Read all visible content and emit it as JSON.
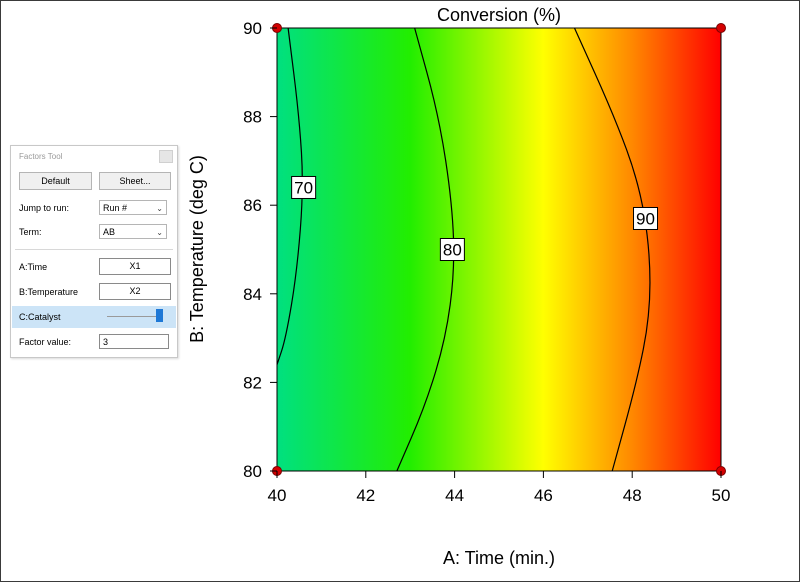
{
  "factors_tool": {
    "title": "Factors Tool",
    "default_button": "Default",
    "sheet_button": "Sheet...",
    "jump_to_run_label": "Jump to run:",
    "jump_to_run_value": "Run #",
    "term_label": "Term:",
    "term_value": "AB",
    "factor_a_label": "A:Time",
    "factor_a_axis": "X1",
    "factor_b_label": "B:Temperature",
    "factor_b_axis": "X2",
    "factor_c_label": "C:Catalyst",
    "factor_c_slider_fraction": 1.0,
    "factor_value_label": "Factor value:",
    "factor_value": "3"
  },
  "chart_data": {
    "type": "contour",
    "title": "Conversion (%)",
    "xlabel": "A: Time (min.)",
    "ylabel": "B: Temperature (deg C)",
    "xlim": [
      40,
      50
    ],
    "ylim": [
      80,
      90
    ],
    "xticks": [
      "40",
      "42",
      "44",
      "46",
      "48",
      "50"
    ],
    "yticks": [
      "80",
      "82",
      "84",
      "86",
      "88",
      "90"
    ],
    "color_scale": [
      "#00e080",
      "#22ee00",
      "#ffff00",
      "#ff8800",
      "#ff0000"
    ],
    "contours": [
      {
        "level": "70",
        "label_at": [
          40.6,
          86.4
        ],
        "points": [
          [
            40.25,
            90
          ],
          [
            40.5,
            88
          ],
          [
            40.6,
            86.4
          ],
          [
            40.45,
            84.5
          ],
          [
            40.2,
            83
          ],
          [
            40.0,
            82.4
          ]
        ]
      },
      {
        "level": "80",
        "label_at": [
          43.95,
          85.0
        ],
        "points": [
          [
            43.1,
            90
          ],
          [
            43.65,
            88
          ],
          [
            43.95,
            86
          ],
          [
            44.0,
            84.5
          ],
          [
            43.8,
            83
          ],
          [
            43.35,
            81.5
          ],
          [
            42.7,
            80
          ]
        ]
      },
      {
        "level": "90",
        "label_at": [
          48.3,
          85.7
        ],
        "points": [
          [
            46.7,
            90
          ],
          [
            47.6,
            88
          ],
          [
            48.15,
            86.5
          ],
          [
            48.4,
            85
          ],
          [
            48.4,
            83.5
          ],
          [
            48.1,
            82
          ],
          [
            47.55,
            80
          ]
        ]
      }
    ],
    "design_points": [
      [
        40,
        80
      ],
      [
        40,
        90
      ],
      [
        50,
        80
      ],
      [
        50,
        90
      ]
    ]
  }
}
